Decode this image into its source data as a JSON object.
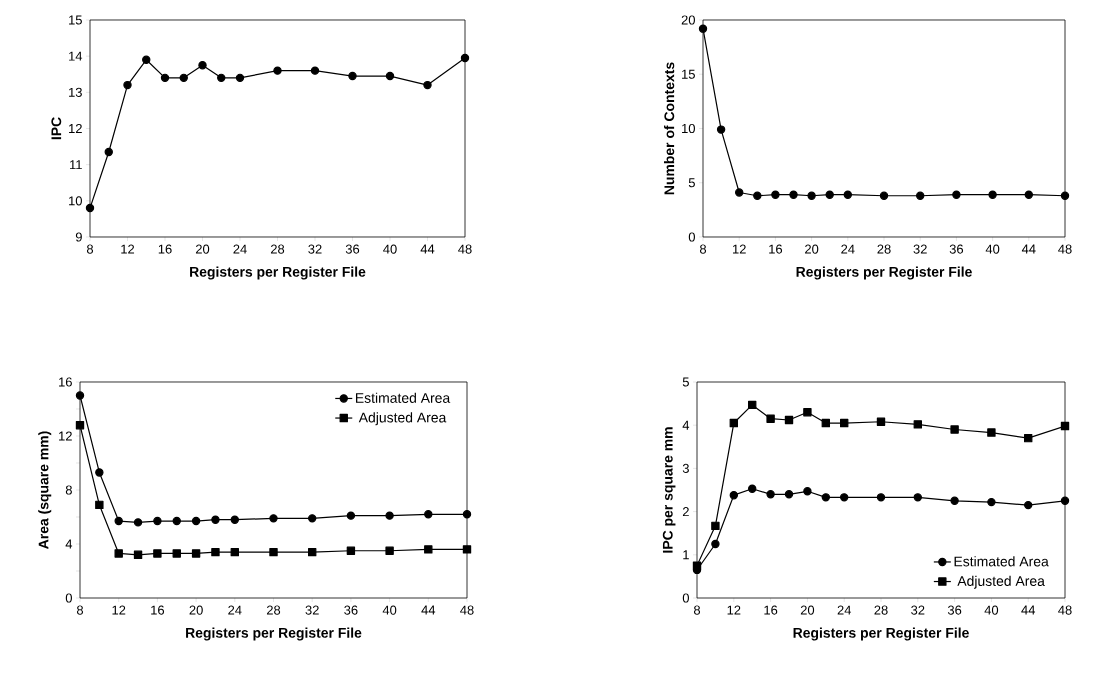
{
  "chart_data": [
    {
      "type": "line",
      "xlabel": "Registers per Register File",
      "ylabel": "IPC",
      "x": [
        8,
        10,
        12,
        14,
        16,
        18,
        20,
        22,
        24,
        28,
        32,
        36,
        40,
        44,
        48
      ],
      "values": [
        9.8,
        11.35,
        13.2,
        13.9,
        13.4,
        13.4,
        13.75,
        13.4,
        13.4,
        13.6,
        13.6,
        13.45,
        13.45,
        13.2,
        13.95
      ],
      "color": "#000000",
      "marker": "circle",
      "xlim": [
        8,
        48
      ],
      "xticks": [
        8,
        12,
        16,
        20,
        24,
        28,
        32,
        36,
        40,
        44,
        48
      ],
      "ylim": [
        9,
        15
      ],
      "yticks": [
        9,
        10,
        11,
        12,
        13,
        14,
        15
      ]
    },
    {
      "type": "line",
      "xlabel": "Registers per Register File",
      "ylabel": "Number of Contexts",
      "x": [
        8,
        10,
        12,
        14,
        16,
        18,
        20,
        22,
        24,
        28,
        32,
        36,
        40,
        44,
        48
      ],
      "values": [
        19.2,
        9.9,
        4.1,
        3.8,
        3.9,
        3.9,
        3.8,
        3.9,
        3.9,
        3.8,
        3.8,
        3.9,
        3.9,
        3.9,
        3.8
      ],
      "color": "#000000",
      "marker": "circle",
      "xlim": [
        8,
        48
      ],
      "xticks": [
        8,
        12,
        16,
        20,
        24,
        28,
        32,
        36,
        40,
        44,
        48
      ],
      "ylim": [
        0,
        20
      ],
      "yticks": [
        0,
        5,
        10,
        15,
        20
      ]
    },
    {
      "type": "line",
      "xlabel": "Registers per Register File",
      "ylabel": "Area (square mm)",
      "x": [
        8,
        10,
        12,
        14,
        16,
        18,
        20,
        22,
        24,
        28,
        32,
        36,
        40,
        44,
        48
      ],
      "legend": "top right",
      "xlim": [
        8,
        48
      ],
      "xticks": [
        8,
        12,
        16,
        20,
        24,
        28,
        32,
        36,
        40,
        44,
        48
      ],
      "ylim": [
        0,
        16
      ],
      "yticks": [
        0,
        {
          "value": 2,
          "label": null
        },
        4,
        {
          "value": 6,
          "label": null
        },
        8,
        {
          "value": 10,
          "label": null
        },
        12,
        {
          "value": 14,
          "label": null
        },
        16
      ],
      "series": [
        {
          "name": "Estimated Area",
          "color": "#000000",
          "marker": "circle",
          "values": [
            15.0,
            9.3,
            5.7,
            5.6,
            5.7,
            5.7,
            5.7,
            5.8,
            5.8,
            5.9,
            5.9,
            6.1,
            6.1,
            6.2,
            6.2
          ]
        },
        {
          "name": "Adjusted Area",
          "color": "#000000",
          "marker": "square",
          "values": [
            12.8,
            6.9,
            3.3,
            3.2,
            3.3,
            3.3,
            3.3,
            3.4,
            3.4,
            3.4,
            3.4,
            3.5,
            3.5,
            3.6,
            3.6
          ]
        }
      ]
    },
    {
      "type": "line",
      "xlabel": "Registers per Register File",
      "ylabel": "IPC per square mm",
      "x": [
        8,
        10,
        12,
        14,
        16,
        18,
        20,
        22,
        24,
        28,
        32,
        36,
        40,
        44,
        48
      ],
      "legend": "bottom right",
      "xlim": [
        8,
        48
      ],
      "xticks": [
        8,
        12,
        16,
        20,
        24,
        28,
        32,
        36,
        40,
        44,
        48
      ],
      "ylim": [
        0,
        5
      ],
      "yticks": [
        0,
        1,
        2,
        3,
        4,
        5
      ],
      "series": [
        {
          "name": "Estimated Area",
          "color": "#000000",
          "marker": "circle",
          "values": [
            0.65,
            1.25,
            2.38,
            2.53,
            2.4,
            2.4,
            2.47,
            2.33,
            2.33,
            2.33,
            2.33,
            2.25,
            2.22,
            2.15,
            2.25
          ]
        },
        {
          "name": "Adjusted Area",
          "color": "#000000",
          "marker": "square",
          "values": [
            0.75,
            1.67,
            4.05,
            4.47,
            4.15,
            4.12,
            4.3,
            4.05,
            4.05,
            4.08,
            4.02,
            3.9,
            3.83,
            3.7,
            3.98
          ]
        }
      ]
    }
  ]
}
